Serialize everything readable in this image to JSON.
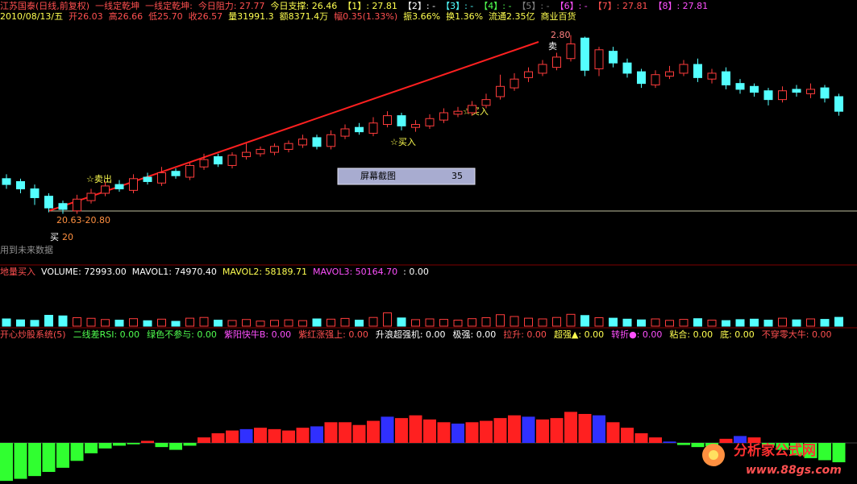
{
  "header": {
    "row1": [
      "江苏国泰(日线,前复权)",
      "一线定乾坤",
      "一线定乾坤:",
      "今日阻力: 27.77",
      "今日支撑: 26.46",
      "【1】: 27.81",
      "【2】: -",
      "【3】: -",
      "【4】: -",
      "【5】: -",
      "【6】: -",
      "【7】: 27.81",
      "【8】: 27.81"
    ],
    "row2": [
      "2010/08/13/五",
      "开26.03",
      "高26.66",
      "低25.70",
      "收26.57",
      "量31991.3",
      "额8371.4万",
      "幅0.35(1.33%)",
      "振3.66%",
      "换1.36%",
      "流通2.35亿",
      "商业百货"
    ]
  },
  "price_panel": {
    "labels": {
      "high": "2.80",
      "sell_top": "卖",
      "buy1": "☆买入",
      "buy2": "☆买入",
      "sell1": "☆卖出",
      "range": "20.63-20.80",
      "buy_low": "买",
      "low_num": "20",
      "note": "用到未来数据"
    },
    "ylim": [
      18.7,
      34.1
    ],
    "open": [
      23.0,
      22.8,
      22.3,
      21.8,
      21.3,
      20.8,
      21.5,
      22.0,
      22.6,
      22.2,
      23.1,
      22.7,
      23.5,
      23.1,
      23.8,
      24.5,
      23.9,
      24.5,
      24.7,
      24.8,
      25.0,
      25.3,
      25.8,
      25.2,
      25.9,
      26.5,
      26.1,
      26.7,
      27.3,
      26.5,
      26.6,
      27.0,
      27.4,
      27.5,
      28.0,
      28.6,
      29.2,
      29.9,
      30.2,
      30.6,
      31.2,
      32.6,
      30.5,
      31.7,
      30.9,
      30.3,
      29.4,
      30.0,
      30.2,
      30.8,
      29.8,
      30.3,
      29.5,
      29.3,
      29.0,
      28.4,
      29.1,
      28.8,
      29.2,
      28.6
    ],
    "high": [
      23.3,
      23.0,
      22.6,
      22.0,
      21.5,
      21.9,
      22.3,
      22.8,
      22.9,
      23.3,
      23.4,
      23.8,
      23.7,
      24.1,
      24.7,
      24.7,
      24.8,
      25.4,
      25.2,
      25.4,
      25.6,
      26.0,
      26.0,
      26.3,
      26.7,
      26.8,
      27.2,
      27.6,
      27.5,
      27.0,
      27.4,
      27.8,
      27.9,
      28.3,
      28.8,
      30.1,
      30.2,
      30.6,
      31.1,
      31.6,
      32.8,
      32.7,
      32.0,
      32.0,
      31.2,
      30.5,
      30.4,
      30.7,
      31.1,
      31.2,
      30.5,
      30.6,
      29.8,
      29.5,
      29.2,
      29.3,
      29.4,
      29.5,
      29.4,
      28.8
    ],
    "low": [
      22.3,
      22.0,
      21.2,
      20.7,
      20.6,
      20.6,
      21.3,
      21.8,
      22.1,
      22.0,
      22.6,
      22.5,
      23.0,
      22.9,
      23.6,
      23.8,
      23.7,
      24.3,
      24.5,
      24.6,
      24.8,
      25.1,
      25.0,
      25.0,
      25.7,
      26.0,
      25.9,
      26.5,
      26.3,
      26.2,
      26.4,
      26.8,
      27.2,
      27.3,
      27.8,
      28.4,
      29.0,
      29.6,
      30.0,
      30.4,
      31.0,
      30.0,
      30.0,
      30.6,
      29.9,
      29.2,
      29.2,
      29.8,
      30.0,
      29.6,
      29.5,
      29.1,
      28.8,
      28.6,
      28.0,
      28.2,
      28.6,
      28.5,
      28.2,
      27.3
    ],
    "close": [
      22.6,
      22.3,
      21.7,
      21.0,
      20.9,
      21.6,
      22.0,
      22.5,
      22.3,
      23.0,
      22.8,
      23.4,
      23.2,
      23.9,
      24.3,
      24.0,
      24.6,
      24.8,
      25.0,
      25.2,
      25.4,
      25.7,
      25.2,
      26.0,
      26.4,
      26.2,
      26.8,
      27.3,
      26.6,
      26.7,
      27.1,
      27.5,
      27.6,
      28.0,
      28.4,
      29.3,
      29.8,
      30.3,
      30.8,
      31.3,
      32.2,
      30.4,
      31.8,
      30.9,
      30.2,
      29.5,
      30.1,
      30.3,
      30.8,
      29.9,
      30.2,
      29.4,
      29.1,
      28.9,
      28.4,
      29.0,
      28.9,
      29.1,
      28.5,
      27.6
    ]
  },
  "popup": {
    "title": "屏幕截图",
    "count": "35"
  },
  "volume_panel": {
    "header": [
      "地量买入",
      "VOLUME: 72993.00",
      "MAVOL1: 74970.40",
      "MAVOL2: 58189.71",
      "MAVOL3: 50164.70",
      ": 0.00"
    ],
    "ylim": [
      0,
      400000
    ],
    "values": [
      60000,
      52000,
      48000,
      90000,
      85000,
      70000,
      65000,
      55000,
      50000,
      62000,
      45000,
      58000,
      40000,
      66000,
      72000,
      50000,
      47000,
      55000,
      42000,
      48000,
      52000,
      46000,
      60000,
      58000,
      64000,
      50000,
      72000,
      110000,
      68000,
      54000,
      60000,
      56000,
      50000,
      62000,
      70000,
      95000,
      80000,
      66000,
      60000,
      72000,
      98000,
      88000,
      70000,
      66000,
      58000,
      52000,
      60000,
      48000,
      56000,
      62000,
      50000,
      46000,
      54000,
      58000,
      50000,
      66000,
      52000,
      60000,
      56000,
      72993
    ]
  },
  "indicator_panel": {
    "header": [
      "开心炒股系统(5)",
      "二线差RSI: 0.00",
      "绿色不参与: 0.00",
      "紫阳快牛B: 0.00",
      "紫红涨强上: 0.00",
      "升浪超强机: 0.00",
      "极强: 0.00",
      "拉升: 0.00",
      "超强▲: 0.00",
      "转折●: 0.00",
      "粘合: 0.00",
      "底: 0.00",
      "不穿零大牛: 0.00"
    ],
    "ylim": [
      -70,
      70
    ],
    "values": [
      -55,
      -52,
      -48,
      -42,
      -36,
      -26,
      -15,
      -8,
      -4,
      -2,
      3,
      -6,
      -10,
      -4,
      8,
      14,
      18,
      20,
      22,
      20,
      18,
      22,
      24,
      30,
      30,
      26,
      32,
      38,
      36,
      40,
      34,
      30,
      28,
      30,
      32,
      36,
      40,
      38,
      34,
      36,
      45,
      42,
      40,
      30,
      22,
      14,
      8,
      2,
      -3,
      -6,
      -5,
      6,
      10,
      8,
      -4,
      -10,
      -18,
      -22,
      -25,
      -28
    ]
  },
  "watermark": {
    "name": "分析家公式网",
    "url": "www.88gs.com"
  }
}
